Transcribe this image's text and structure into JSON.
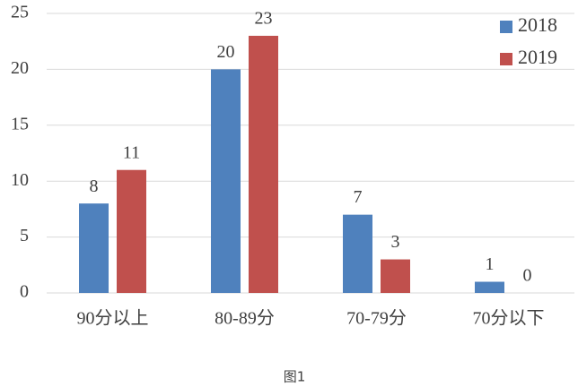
{
  "chart_data": {
    "type": "bar",
    "caption": "图1",
    "categories": [
      "90分以上",
      "80-89分",
      "70-79分",
      "70分以下"
    ],
    "series": [
      {
        "name": "2018",
        "color": "#4f81bd",
        "values": [
          8,
          20,
          7,
          1
        ]
      },
      {
        "name": "2019",
        "color": "#c0504d",
        "values": [
          11,
          23,
          3,
          0
        ]
      }
    ],
    "ylim": [
      0,
      25
    ],
    "yticks": [
      0,
      5,
      10,
      15,
      20,
      25
    ],
    "grid": true,
    "legend": "top-right"
  }
}
